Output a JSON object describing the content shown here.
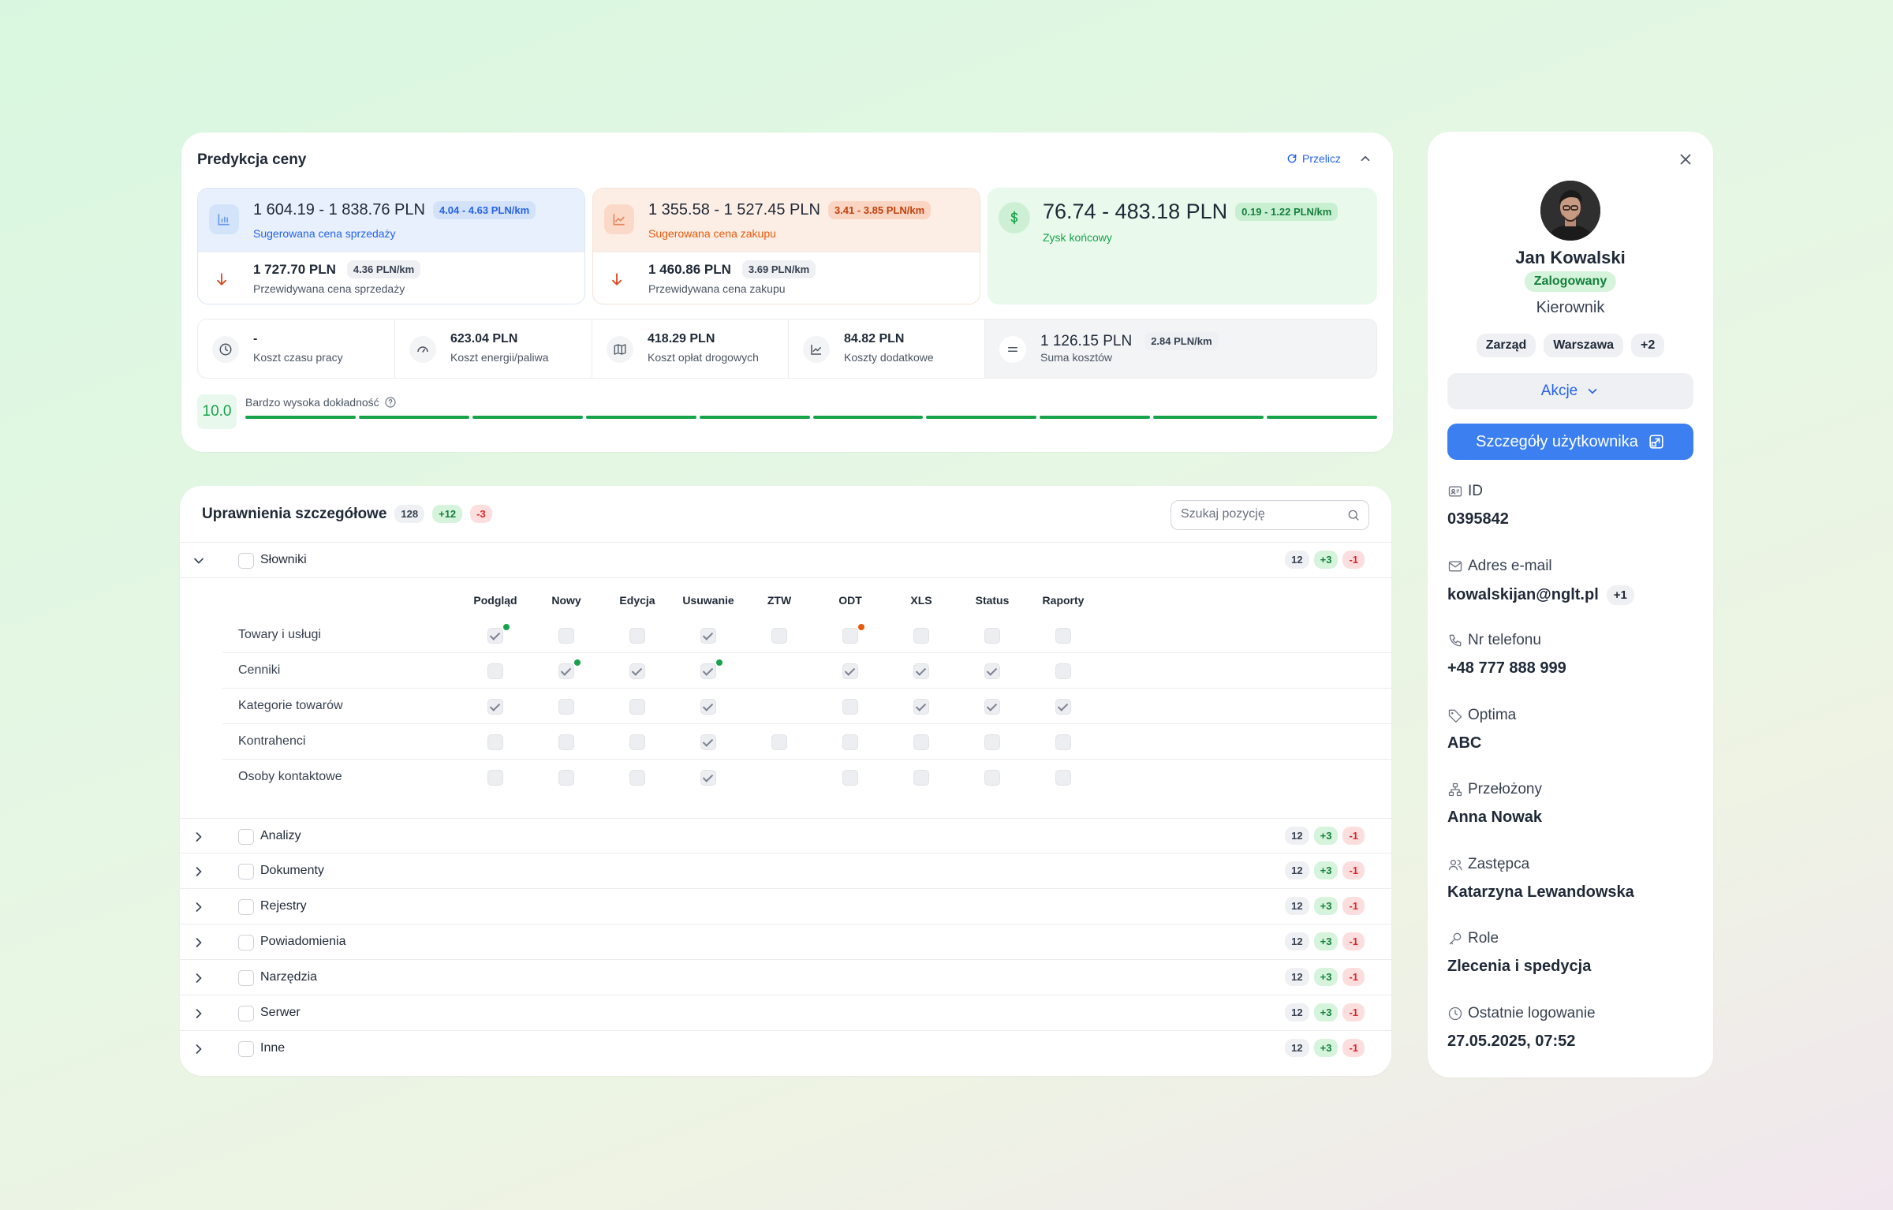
{
  "prediction": {
    "title": "Predykcja ceny",
    "recalc_label": "Przelicz",
    "sale": {
      "range": "1 604.19 - 1 838.76 PLN",
      "rate": "4.04 - 4.63 PLN/km",
      "label": "Sugerowana cena sprzedaży",
      "pred_value": "1 727.70 PLN",
      "pred_rate": "4.36 PLN/km",
      "pred_label": "Przewidywana cena sprzedaży"
    },
    "purchase": {
      "range": "1 355.58 - 1 527.45 PLN",
      "rate": "3.41 - 3.85 PLN/km",
      "label": "Sugerowana cena zakupu",
      "pred_value": "1 460.86 PLN",
      "pred_rate": "3.69 PLN/km",
      "pred_label": "Przewidywana cena zakupu"
    },
    "profit": {
      "range": "76.74 - 483.18 PLN",
      "rate": "0.19 - 1.22 PLN/km",
      "label": "Zysk końcowy"
    },
    "costs": [
      {
        "value": "-",
        "label": "Koszt czasu pracy",
        "icon": "clock-icon"
      },
      {
        "value": "623.04 PLN",
        "label": "Koszt energii/paliwa",
        "icon": "gauge-icon"
      },
      {
        "value": "418.29 PLN",
        "label": "Koszt opłat drogowych",
        "icon": "map-icon"
      },
      {
        "value": "84.82 PLN",
        "label": "Koszty dodatkowe",
        "icon": "chart-icon"
      }
    ],
    "sum": {
      "value": "1 126.15 PLN",
      "rate": "2.84 PLN/km",
      "label": "Suma kosztów"
    },
    "accuracy": {
      "score": "10.0",
      "label": "Bardzo wysoka dokładność",
      "segments_filled": 10,
      "segments_total": 10
    }
  },
  "permissions": {
    "title": "Uprawnienia szczegółowe",
    "count_total": "128",
    "count_added": "+12",
    "count_removed": "-3",
    "search_placeholder": "Szukaj pozycję",
    "columns": [
      "Podgląd",
      "Nowy",
      "Edycja",
      "Usuwanie",
      "ZTW",
      "ODT",
      "XLS",
      "Status",
      "Raporty"
    ],
    "expanded_group": {
      "label": "Słowniki",
      "count": "12",
      "added": "+3",
      "removed": "-1"
    },
    "rows": [
      {
        "label": "Towary i usługi",
        "cells": [
          1,
          0,
          0,
          1,
          0,
          0,
          0,
          0,
          0
        ]
      },
      {
        "label": "Cenniki",
        "cells": [
          0,
          1,
          1,
          1,
          -1,
          1,
          1,
          1,
          0
        ]
      },
      {
        "label": "Kategorie towarów",
        "cells": [
          1,
          0,
          0,
          1,
          -1,
          0,
          1,
          1,
          1
        ]
      },
      {
        "label": "Kontrahenci",
        "cells": [
          0,
          0,
          0,
          1,
          0,
          0,
          0,
          0,
          0
        ]
      },
      {
        "label": "Osoby kontaktowe",
        "cells": [
          0,
          0,
          0,
          1,
          -1,
          0,
          0,
          0,
          0
        ]
      }
    ],
    "groups": [
      {
        "label": "Analizy",
        "count": "12",
        "added": "+3",
        "removed": "-1"
      },
      {
        "label": "Dokumenty",
        "count": "12",
        "added": "+3",
        "removed": "-1"
      },
      {
        "label": "Rejestry",
        "count": "12",
        "added": "+3",
        "removed": "-1"
      },
      {
        "label": "Powiadomienia",
        "count": "12",
        "added": "+3",
        "removed": "-1"
      },
      {
        "label": "Narzędzia",
        "count": "12",
        "added": "+3",
        "removed": "-1"
      },
      {
        "label": "Serwer",
        "count": "12",
        "added": "+3",
        "removed": "-1"
      },
      {
        "label": "Inne",
        "count": "12",
        "added": "+3",
        "removed": "-1"
      }
    ]
  },
  "user": {
    "name": "Jan Kowalski",
    "status": "Zalogowany",
    "role": "Kierownik",
    "tags": [
      "Zarząd",
      "Warszawa",
      "+2"
    ],
    "actions_label": "Akcje",
    "details_label": "Szczegóły użytkownika",
    "fields": [
      {
        "label": "ID",
        "value": "0395842",
        "icon": "id-card-icon"
      },
      {
        "label": "Adres e-mail",
        "value": "kowalskijan@nglt.pl",
        "extra": "+1",
        "icon": "mail-icon"
      },
      {
        "label": "Nr telefonu",
        "value": "+48 777 888 999",
        "icon": "phone-icon"
      },
      {
        "label": "Optima",
        "value": "ABC",
        "icon": "tag-icon"
      },
      {
        "label": "Przełożony",
        "value": "Anna Nowak",
        "icon": "hierarchy-icon"
      },
      {
        "label": "Zastępca",
        "value": "Katarzyna Lewandowska",
        "icon": "users-icon"
      },
      {
        "label": "Role",
        "value": "Zlecenia i spedycja",
        "icon": "key-icon"
      },
      {
        "label": "Ostatnie logowanie",
        "value": "27.05.2025, 07:52",
        "icon": "clock-icon"
      }
    ]
  }
}
